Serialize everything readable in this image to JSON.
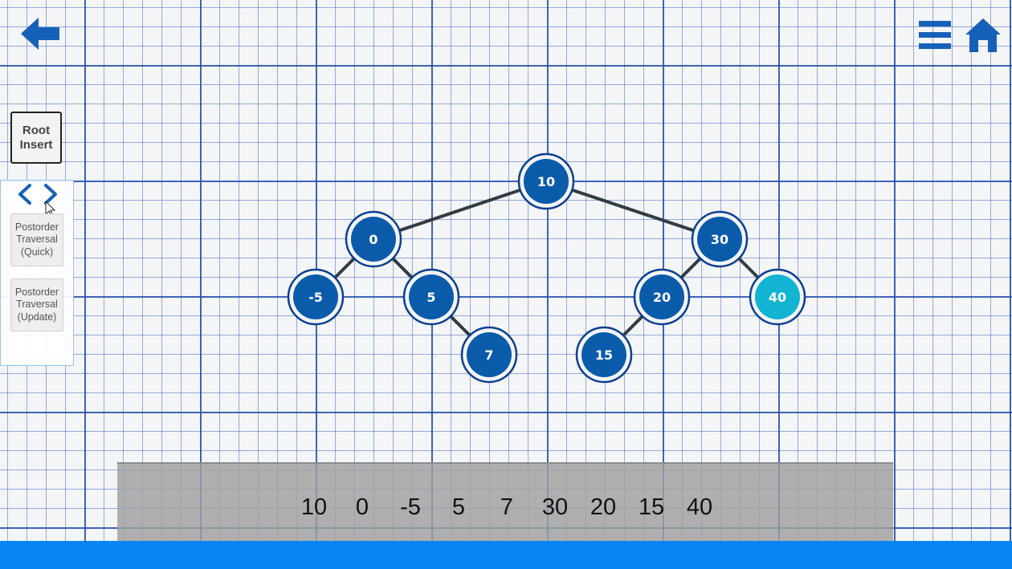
{
  "ui": {
    "root_insert_label": "Root Insert",
    "traversal_quick_label": "Postorder\nTraversal\n(Quick)",
    "traversal_update_label": "Postorder\nTraversal\n(Update)"
  },
  "icons": {
    "back": "back-arrow-icon",
    "menu": "hamburger-menu-icon",
    "home": "home-icon",
    "prev": "chevron-left-icon",
    "next": "chevron-right-icon"
  },
  "colors": {
    "node_fill": "#0b5bab",
    "node_ring": "#0c3f8f",
    "highlight_fill": "#12b4d2",
    "edge": "#333c44",
    "accent_blue": "#0a84f2"
  },
  "tree": {
    "nodes": [
      {
        "id": "n10",
        "label": "10",
        "highlight": false
      },
      {
        "id": "n0",
        "label": "0",
        "highlight": false
      },
      {
        "id": "n30",
        "label": "30",
        "highlight": false
      },
      {
        "id": "nm5",
        "label": "-5",
        "highlight": false
      },
      {
        "id": "n5",
        "label": "5",
        "highlight": false
      },
      {
        "id": "n20",
        "label": "20",
        "highlight": false
      },
      {
        "id": "n40",
        "label": "40",
        "highlight": true
      },
      {
        "id": "n7",
        "label": "7",
        "highlight": false
      },
      {
        "id": "n15",
        "label": "15",
        "highlight": false
      }
    ]
  },
  "traversal_output": [
    "10",
    "0",
    "-5",
    "5",
    "7",
    "30",
    "20",
    "15",
    "40"
  ]
}
